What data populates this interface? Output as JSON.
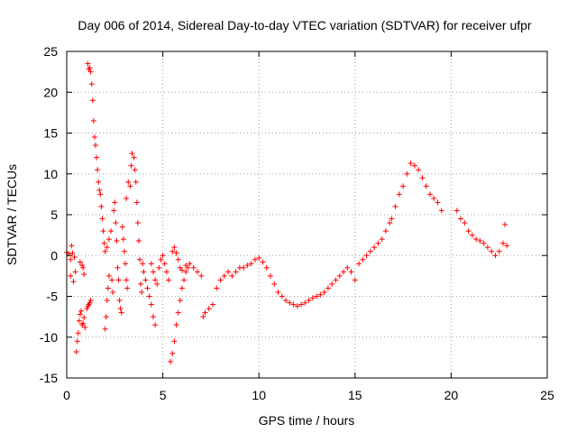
{
  "chart_data": {
    "type": "scatter",
    "title": "Day 006 of 2014, Sidereal Day-to-day VTEC variation (SDTVAR) for receiver ufpr",
    "xlabel": "GPS time / hours",
    "ylabel": "SDTVAR / TECUs",
    "xlim": [
      0,
      25
    ],
    "ylim": [
      -15,
      25
    ],
    "xticks": [
      0,
      5,
      10,
      15,
      20,
      25
    ],
    "yticks": [
      -15,
      -10,
      -5,
      0,
      5,
      10,
      15,
      20,
      25
    ],
    "grid": true,
    "marker": "+",
    "series_color": "#ff0000",
    "series": [
      {
        "name": "SDTVAR",
        "points": [
          [
            0.0,
            0.4
          ],
          [
            0.1,
            0.2
          ],
          [
            0.2,
            -0.5
          ],
          [
            0.2,
            -2.5
          ],
          [
            0.25,
            1.2
          ],
          [
            0.3,
            0.3
          ],
          [
            0.35,
            -3.2
          ],
          [
            0.4,
            -0.2
          ],
          [
            0.45,
            -2.0
          ],
          [
            0.5,
            -11.8
          ],
          [
            0.55,
            -10.5
          ],
          [
            0.6,
            -9.5
          ],
          [
            0.65,
            -8.0
          ],
          [
            0.7,
            -7.2
          ],
          [
            0.75,
            -6.8
          ],
          [
            0.8,
            -8.5
          ],
          [
            0.85,
            -8.3
          ],
          [
            0.9,
            -7.6
          ],
          [
            0.95,
            -8.8
          ],
          [
            0.7,
            -0.8
          ],
          [
            0.8,
            -1.2
          ],
          [
            0.85,
            -1.5
          ],
          [
            0.9,
            -2.3
          ],
          [
            1.05,
            -6.5
          ],
          [
            1.1,
            -6.2
          ],
          [
            1.15,
            -6.0
          ],
          [
            1.2,
            -5.8
          ],
          [
            1.25,
            -5.5
          ],
          [
            1.1,
            23.5
          ],
          [
            1.15,
            22.8
          ],
          [
            1.2,
            23.0
          ],
          [
            1.25,
            22.5
          ],
          [
            1.3,
            21.0
          ],
          [
            1.35,
            19.0
          ],
          [
            1.4,
            16.5
          ],
          [
            1.45,
            14.5
          ],
          [
            1.5,
            13.5
          ],
          [
            1.55,
            12.0
          ],
          [
            1.6,
            10.5
          ],
          [
            1.65,
            9.0
          ],
          [
            1.7,
            8.0
          ],
          [
            1.75,
            7.5
          ],
          [
            1.8,
            6.0
          ],
          [
            1.85,
            4.5
          ],
          [
            1.9,
            3.0
          ],
          [
            1.95,
            1.5
          ],
          [
            2.0,
            0.5
          ],
          [
            2.0,
            -9.0
          ],
          [
            2.05,
            -7.5
          ],
          [
            2.1,
            -5.5
          ],
          [
            2.15,
            -4.0
          ],
          [
            2.2,
            -2.5
          ],
          [
            2.1,
            1.0
          ],
          [
            2.2,
            2.0
          ],
          [
            2.3,
            3.0
          ],
          [
            2.35,
            -3.0
          ],
          [
            2.4,
            -4.5
          ],
          [
            2.45,
            5.5
          ],
          [
            2.5,
            6.5
          ],
          [
            2.55,
            4.0
          ],
          [
            2.6,
            1.8
          ],
          [
            2.65,
            -1.5
          ],
          [
            2.7,
            -3.0
          ],
          [
            2.75,
            -5.5
          ],
          [
            2.8,
            -6.5
          ],
          [
            2.85,
            -7.0
          ],
          [
            2.9,
            3.5
          ],
          [
            2.95,
            2.0
          ],
          [
            3.0,
            0.5
          ],
          [
            3.05,
            -1.0
          ],
          [
            3.1,
            -3.0
          ],
          [
            3.15,
            -4.0
          ],
          [
            3.1,
            7.0
          ],
          [
            3.2,
            9.0
          ],
          [
            3.3,
            8.5
          ],
          [
            3.35,
            11.0
          ],
          [
            3.4,
            12.5
          ],
          [
            3.5,
            12.0
          ],
          [
            3.55,
            10.5
          ],
          [
            3.6,
            9.0
          ],
          [
            3.65,
            6.5
          ],
          [
            3.7,
            4.0
          ],
          [
            3.75,
            1.8
          ],
          [
            3.8,
            -0.5
          ],
          [
            3.85,
            -3.5
          ],
          [
            3.9,
            -4.5
          ],
          [
            3.95,
            -1.0
          ],
          [
            4.0,
            -2.0
          ],
          [
            4.1,
            -3.0
          ],
          [
            4.2,
            -4.0
          ],
          [
            4.3,
            -5.0
          ],
          [
            4.4,
            -6.0
          ],
          [
            4.5,
            -7.5
          ],
          [
            4.6,
            -8.5
          ],
          [
            4.4,
            -1.0
          ],
          [
            4.5,
            -2.0
          ],
          [
            4.6,
            -3.0
          ],
          [
            4.7,
            -3.5
          ],
          [
            4.8,
            -1.5
          ],
          [
            4.9,
            -0.5
          ],
          [
            5.0,
            0.0
          ],
          [
            5.1,
            -1.0
          ],
          [
            5.2,
            -2.0
          ],
          [
            5.3,
            -3.0
          ],
          [
            5.4,
            -13.0
          ],
          [
            5.5,
            -12.0
          ],
          [
            5.6,
            -10.5
          ],
          [
            5.7,
            -8.5
          ],
          [
            5.8,
            -7.0
          ],
          [
            5.9,
            -5.5
          ],
          [
            6.0,
            -4.0
          ],
          [
            6.1,
            -3.0
          ],
          [
            6.2,
            -2.0
          ],
          [
            6.3,
            -1.5
          ],
          [
            5.5,
            0.5
          ],
          [
            5.6,
            1.0
          ],
          [
            5.7,
            0.3
          ],
          [
            5.8,
            -0.5
          ],
          [
            5.9,
            -1.5
          ],
          [
            6.0,
            -1.8
          ],
          [
            6.2,
            -1.2
          ],
          [
            6.4,
            -1.0
          ],
          [
            6.6,
            -1.5
          ],
          [
            6.8,
            -2.0
          ],
          [
            7.0,
            -2.5
          ],
          [
            7.1,
            -7.5
          ],
          [
            7.2,
            -7.0
          ],
          [
            7.4,
            -6.5
          ],
          [
            7.6,
            -6.0
          ],
          [
            7.8,
            -4.0
          ],
          [
            8.0,
            -3.0
          ],
          [
            8.2,
            -2.5
          ],
          [
            8.4,
            -2.0
          ],
          [
            8.6,
            -2.5
          ],
          [
            8.8,
            -2.0
          ],
          [
            9.0,
            -1.5
          ],
          [
            9.2,
            -1.5
          ],
          [
            9.4,
            -1.2
          ],
          [
            9.6,
            -1.0
          ],
          [
            9.8,
            -0.5
          ],
          [
            10.0,
            -0.3
          ],
          [
            10.2,
            -0.8
          ],
          [
            10.4,
            -1.5
          ],
          [
            10.6,
            -2.5
          ],
          [
            10.8,
            -3.5
          ],
          [
            11.0,
            -4.5
          ],
          [
            11.2,
            -5.0
          ],
          [
            11.4,
            -5.5
          ],
          [
            11.6,
            -5.8
          ],
          [
            11.8,
            -6.0
          ],
          [
            12.0,
            -6.2
          ],
          [
            12.2,
            -6.0
          ],
          [
            12.4,
            -5.8
          ],
          [
            12.6,
            -5.5
          ],
          [
            12.8,
            -5.2
          ],
          [
            13.0,
            -5.0
          ],
          [
            13.2,
            -4.8
          ],
          [
            13.4,
            -4.5
          ],
          [
            13.6,
            -4.0
          ],
          [
            13.8,
            -3.5
          ],
          [
            14.0,
            -3.0
          ],
          [
            14.2,
            -2.5
          ],
          [
            14.4,
            -2.0
          ],
          [
            14.6,
            -1.5
          ],
          [
            14.8,
            -2.0
          ],
          [
            15.0,
            -3.0
          ],
          [
            15.2,
            -1.0
          ],
          [
            15.4,
            -0.5
          ],
          [
            15.6,
            0.0
          ],
          [
            15.8,
            0.5
          ],
          [
            16.0,
            1.0
          ],
          [
            16.2,
            1.5
          ],
          [
            16.4,
            2.0
          ],
          [
            16.6,
            3.0
          ],
          [
            16.8,
            4.0
          ],
          [
            16.9,
            4.5
          ],
          [
            17.1,
            6.0
          ],
          [
            17.3,
            7.5
          ],
          [
            17.5,
            8.5
          ],
          [
            17.7,
            10.0
          ],
          [
            17.9,
            11.3
          ],
          [
            18.1,
            11.0
          ],
          [
            18.3,
            10.5
          ],
          [
            18.5,
            9.5
          ],
          [
            18.7,
            8.5
          ],
          [
            18.9,
            7.5
          ],
          [
            19.1,
            7.0
          ],
          [
            19.3,
            6.5
          ],
          [
            19.5,
            5.5
          ],
          [
            20.3,
            5.5
          ],
          [
            20.5,
            4.5
          ],
          [
            20.7,
            4.0
          ],
          [
            20.9,
            3.0
          ],
          [
            21.1,
            2.5
          ],
          [
            21.3,
            2.0
          ],
          [
            21.5,
            1.8
          ],
          [
            21.7,
            1.5
          ],
          [
            21.9,
            1.0
          ],
          [
            22.1,
            0.5
          ],
          [
            22.3,
            0.0
          ],
          [
            22.5,
            0.5
          ],
          [
            22.7,
            1.5
          ],
          [
            22.9,
            1.2
          ],
          [
            22.8,
            3.8
          ]
        ]
      }
    ]
  }
}
